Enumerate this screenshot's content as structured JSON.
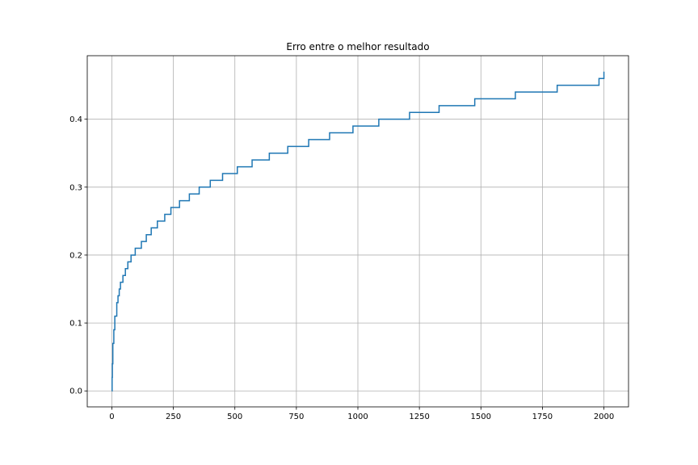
{
  "chart_data": {
    "type": "line",
    "title": "Erro entre o melhor resultado",
    "xlabel": "",
    "ylabel": "",
    "xlim": [
      -100,
      2100
    ],
    "ylim": [
      -0.0235,
      0.4935
    ],
    "grid": true,
    "step": true,
    "x_ticks": [
      0,
      250,
      500,
      750,
      1000,
      1250,
      1500,
      1750,
      2000
    ],
    "x_tick_labels": [
      "0",
      "250",
      "500",
      "750",
      "1000",
      "1250",
      "1500",
      "1750",
      "2000"
    ],
    "y_ticks": [
      0.0,
      0.1,
      0.2,
      0.3,
      0.4
    ],
    "y_tick_labels": [
      "0.0",
      "0.1",
      "0.2",
      "0.3",
      "0.4"
    ],
    "series": [
      {
        "color": "#1f77b4",
        "x": [
          0,
          1,
          2,
          4,
          8,
          12,
          20,
          25,
          30,
          35,
          45,
          55,
          65,
          78,
          95,
          120,
          140,
          160,
          185,
          215,
          240,
          275,
          315,
          355,
          400,
          450,
          510,
          570,
          640,
          715,
          800,
          885,
          980,
          1085,
          1210,
          1330,
          1475,
          1640,
          1810,
          1980,
          2000
        ],
        "y": [
          0.0,
          0.02,
          0.04,
          0.07,
          0.09,
          0.11,
          0.13,
          0.14,
          0.15,
          0.16,
          0.17,
          0.18,
          0.19,
          0.2,
          0.21,
          0.22,
          0.23,
          0.24,
          0.25,
          0.26,
          0.27,
          0.28,
          0.29,
          0.3,
          0.31,
          0.32,
          0.33,
          0.34,
          0.35,
          0.36,
          0.37,
          0.38,
          0.39,
          0.4,
          0.41,
          0.42,
          0.43,
          0.44,
          0.45,
          0.46,
          0.47
        ]
      }
    ]
  }
}
